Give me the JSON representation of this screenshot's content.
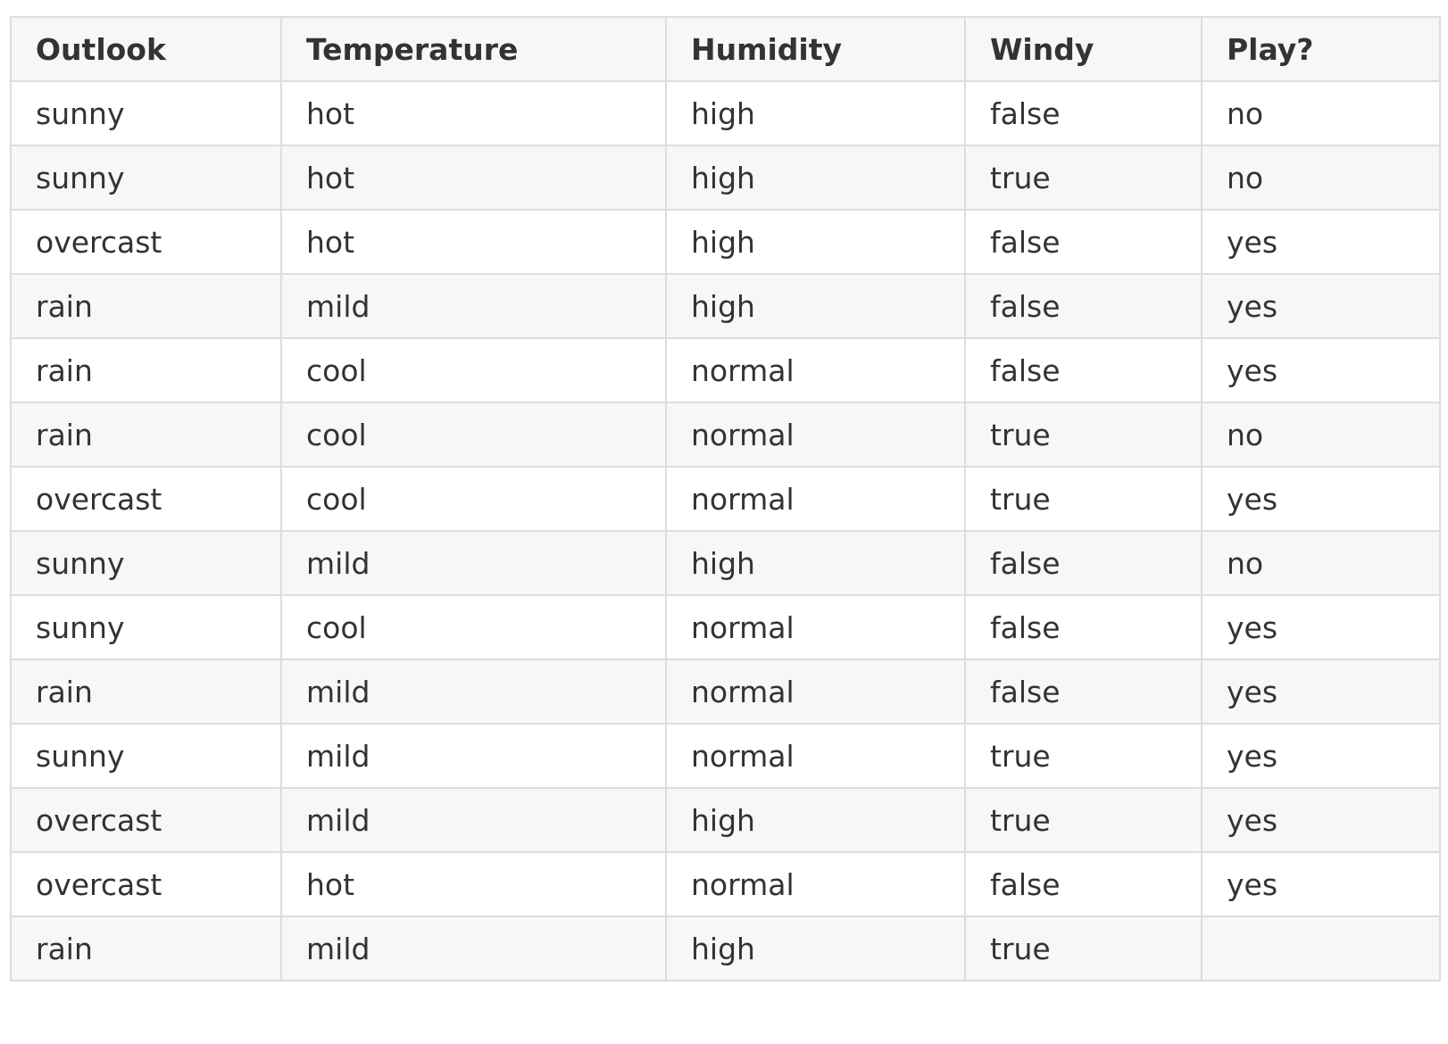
{
  "table": {
    "headers": [
      "Outlook",
      "Temperature",
      "Humidity",
      "Windy",
      "Play?"
    ],
    "rows": [
      [
        "sunny",
        "hot",
        "high",
        "false",
        "no"
      ],
      [
        "sunny",
        "hot",
        "high",
        "true",
        "no"
      ],
      [
        "overcast",
        "hot",
        "high",
        "false",
        "yes"
      ],
      [
        "rain",
        "mild",
        "high",
        "false",
        "yes"
      ],
      [
        "rain",
        "cool",
        "normal",
        "false",
        "yes"
      ],
      [
        "rain",
        "cool",
        "normal",
        "true",
        "no"
      ],
      [
        "overcast",
        "cool",
        "normal",
        "true",
        "yes"
      ],
      [
        "sunny",
        "mild",
        "high",
        "false",
        "no"
      ],
      [
        "sunny",
        "cool",
        "normal",
        "false",
        "yes"
      ],
      [
        "rain",
        "mild",
        "normal",
        "false",
        "yes"
      ],
      [
        "sunny",
        "mild",
        "normal",
        "true",
        "yes"
      ],
      [
        "overcast",
        "mild",
        "high",
        "true",
        "yes"
      ],
      [
        "overcast",
        "hot",
        "normal",
        "false",
        "yes"
      ],
      [
        "rain",
        "mild",
        "high",
        "true",
        ""
      ]
    ]
  },
  "colors": {
    "border": "#dddddd",
    "header_background": "#f7f7f7",
    "stripe_background": "#f7f7f7",
    "text": "#333333"
  }
}
